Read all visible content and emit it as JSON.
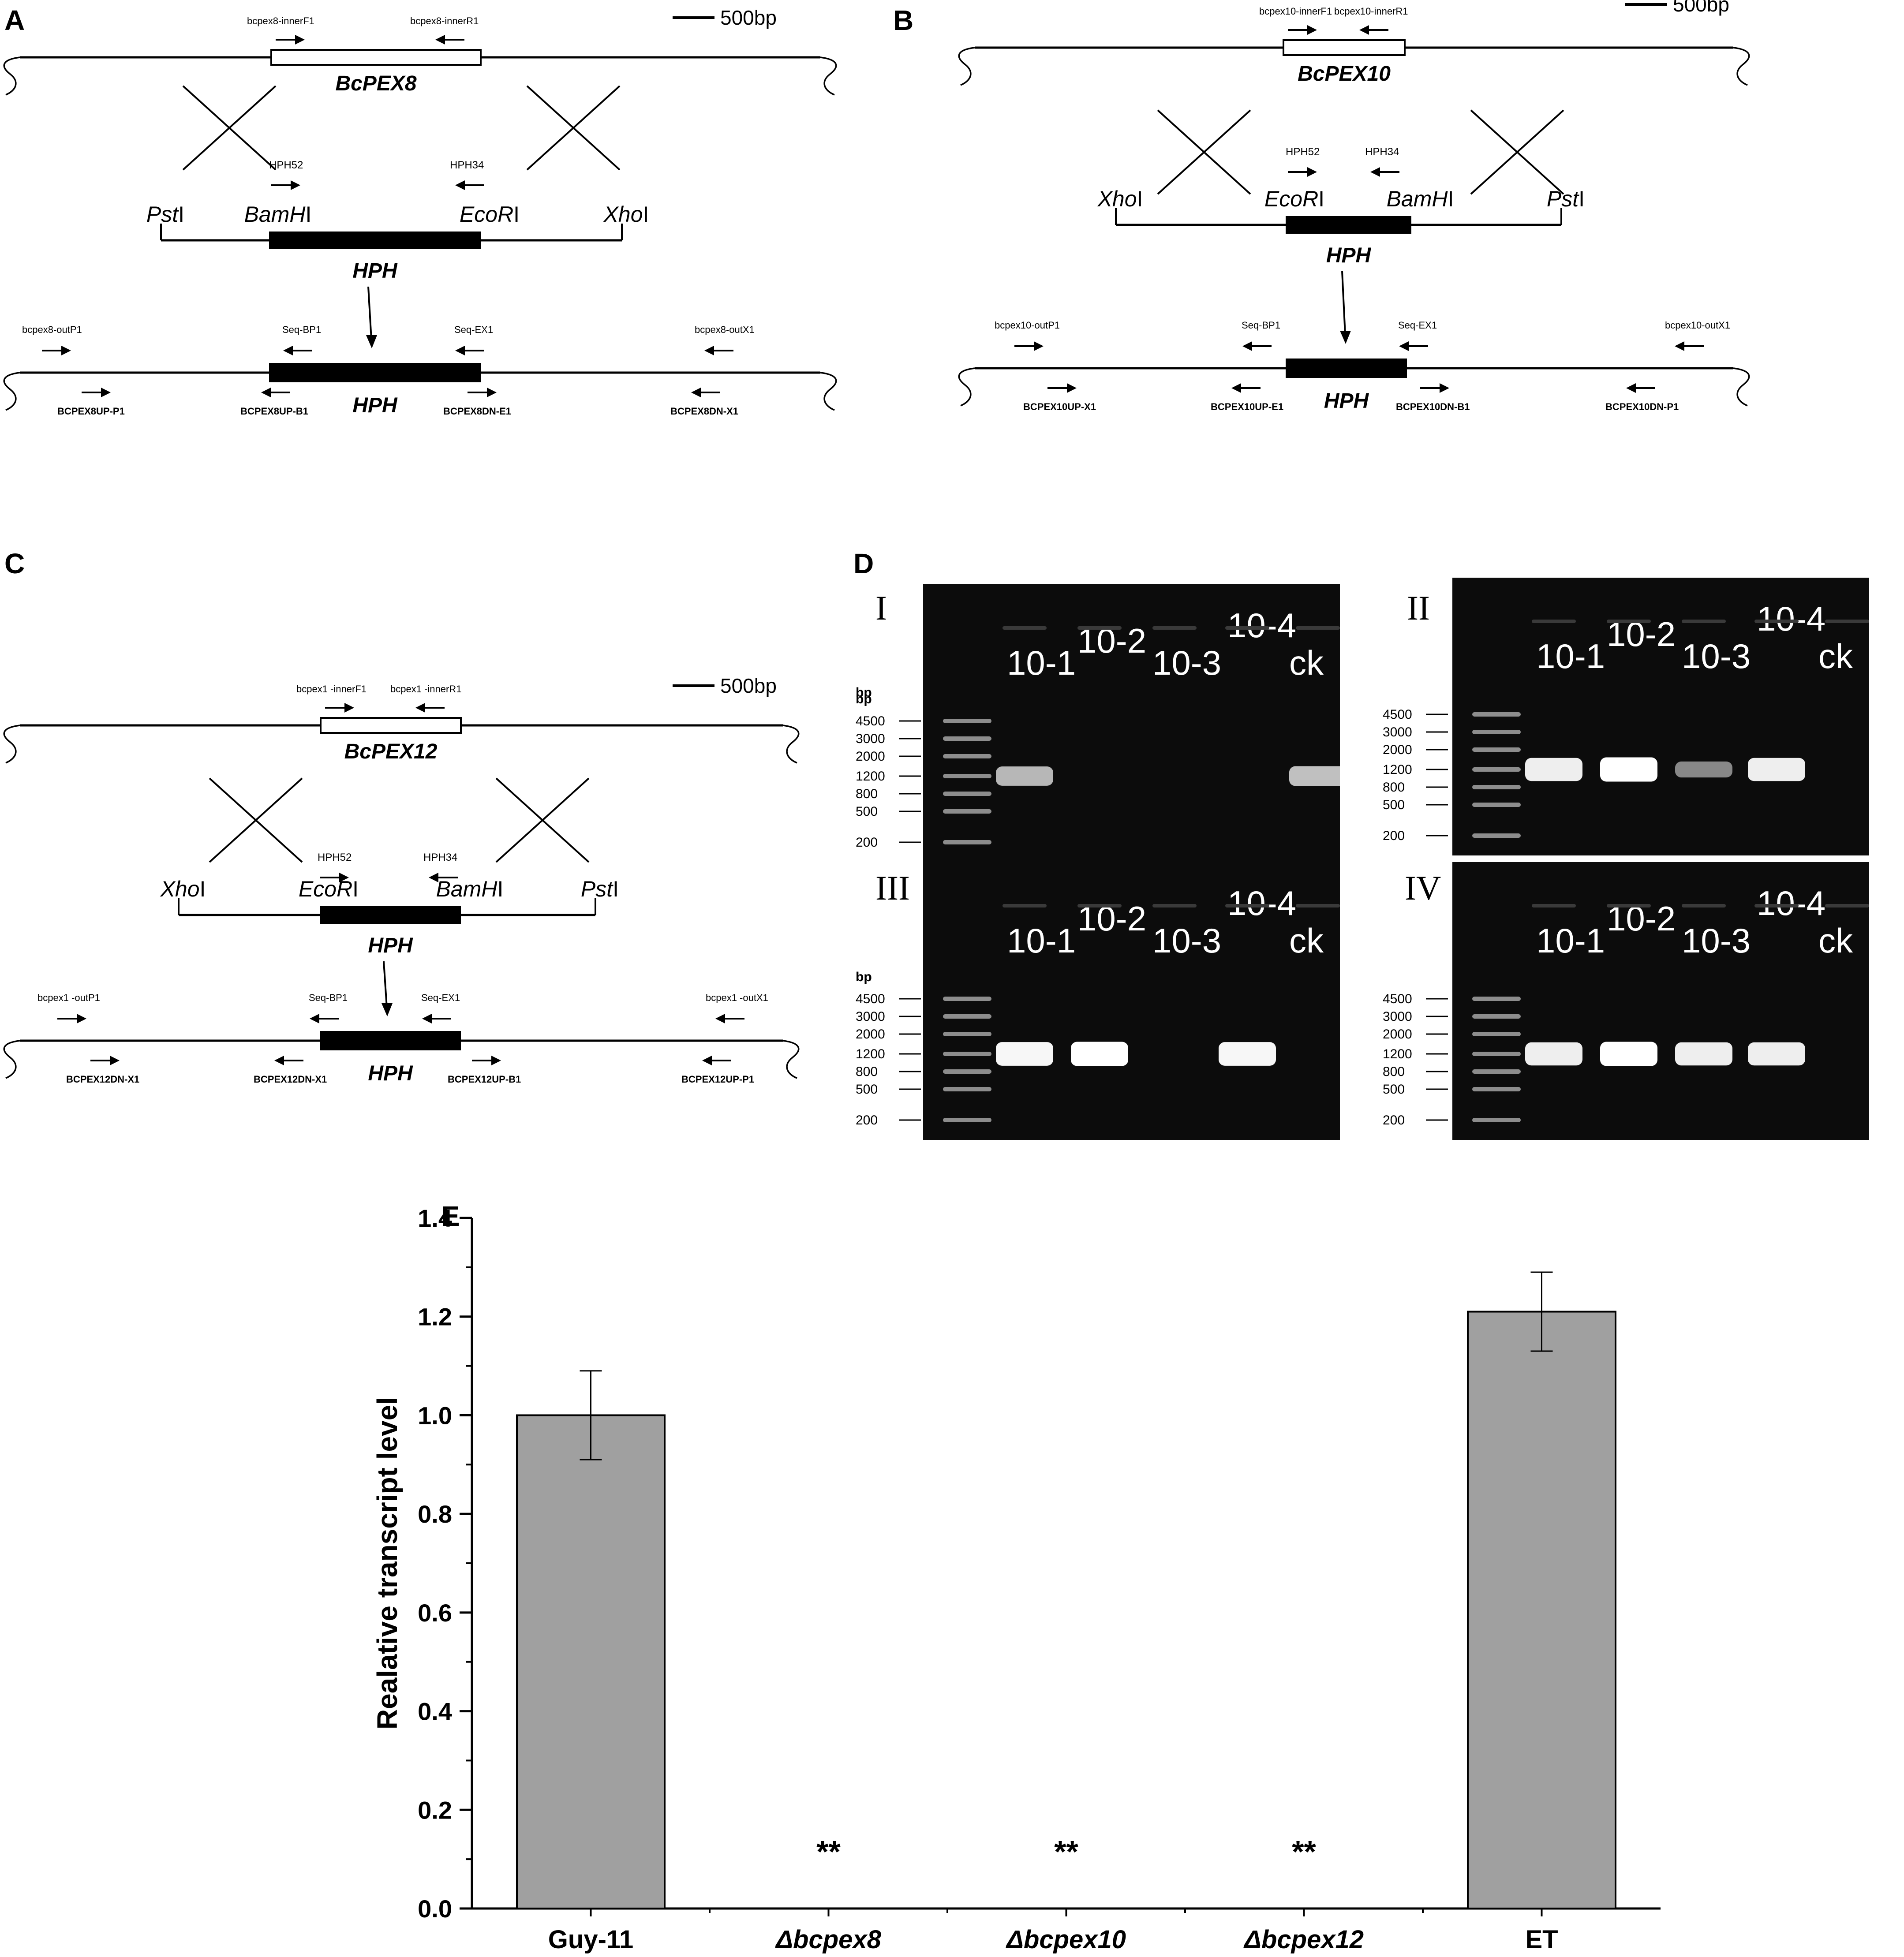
{
  "panels": {
    "A": {
      "letter": "A",
      "scale_label": "500bp",
      "gene": "BcPEX8",
      "inner_f": "bcpex8-innerF1",
      "inner_r": "bcpex8-innerR1",
      "hph_f": "HPH52",
      "hph_r": "HPH34",
      "sites": [
        "Pst",
        "BamH",
        "EcoR",
        "Xho"
      ],
      "cassette": "HPH",
      "out_p": "bcpex8-outP1",
      "out_x": "bcpex8-outX1",
      "seq_bp": "Seq-BP1",
      "seq_ex": "Seq-EX1",
      "primers_bottom": [
        "BCPEX8UP-P1",
        "BCPEX8UP-B1",
        "BCPEX8DN-E1",
        "BCPEX8DN-X1"
      ],
      "result": "HPH"
    },
    "B": {
      "letter": "B",
      "scale_label": "500bp",
      "gene": "BcPEX10",
      "inner_f": "bcpex10-innerF1",
      "inner_r": "bcpex10-innerR1",
      "hph_f": "HPH52",
      "hph_r": "HPH34",
      "sites": [
        "Xho",
        "EcoR",
        "BamH",
        "Pst"
      ],
      "cassette": "HPH",
      "out_p": "bcpex10-outP1",
      "out_x": "bcpex10-outX1",
      "seq_bp": "Seq-BP1",
      "seq_ex": "Seq-EX1",
      "primers_bottom": [
        "BCPEX10UP-X1",
        "BCPEX10UP-E1",
        "BCPEX10DN-B1",
        "BCPEX10DN-P1"
      ],
      "result": "HPH"
    },
    "C": {
      "letter": "C",
      "scale_label": "500bp",
      "gene": "BcPEX12",
      "inner_f": "bcpex1 -innerF1",
      "inner_r": "bcpex1 -innerR1",
      "hph_f": "HPH52",
      "hph_r": "HPH34",
      "sites": [
        "Xho",
        "EcoR",
        "BamH",
        "Pst"
      ],
      "cassette": "HPH",
      "out_p": "bcpex1 -outP1",
      "out_x": "bcpex1 -outX1",
      "seq_bp": "Seq-BP1",
      "seq_ex": "Seq-EX1",
      "primers_bottom": [
        "BCPEX12DN-X1",
        "BCPEX12DN-X1",
        "BCPEX12UP-B1",
        "BCPEX12UP-P1"
      ],
      "result": "HPH"
    },
    "D": {
      "letter": "D",
      "bp_label": "bp",
      "ladder": [
        "4500",
        "3000",
        "2000",
        "1200",
        "800",
        "500",
        "200"
      ],
      "lanes": [
        "10-1",
        "10-2",
        "10-3",
        "10-4",
        "ck"
      ],
      "gels": [
        {
          "roman": "I",
          "bands": [
            0.55,
            0,
            0,
            0,
            0.6
          ]
        },
        {
          "roman": "II",
          "bands": [
            0.9,
            1.0,
            0.25,
            0.9,
            0
          ]
        },
        {
          "roman": "III",
          "bands": [
            0.95,
            1.0,
            0,
            0.95,
            0
          ]
        },
        {
          "roman": "IV",
          "bands": [
            0.9,
            1.0,
            0.9,
            0.9,
            0
          ]
        }
      ]
    },
    "E": {
      "letter": "E"
    }
  },
  "site_suffix": "I",
  "chart_data": {
    "type": "bar",
    "ylabel": "Realative transcript level",
    "ylim": [
      0,
      1.4
    ],
    "yticks": [
      "0.0",
      "0.2",
      "0.4",
      "0.6",
      "0.8",
      "1.0",
      "1.2",
      "1.4"
    ],
    "categories": [
      "Guy-11",
      "Δbcpex8",
      "Δbcpex10",
      "Δbcpex12",
      "ET"
    ],
    "values": [
      1.0,
      0,
      0,
      0,
      1.21
    ],
    "errors": [
      0.09,
      0,
      0,
      0,
      0.08
    ],
    "annotations": [
      "",
      "**",
      "**",
      "**",
      ""
    ],
    "bar_color": "#a0a0a0"
  }
}
